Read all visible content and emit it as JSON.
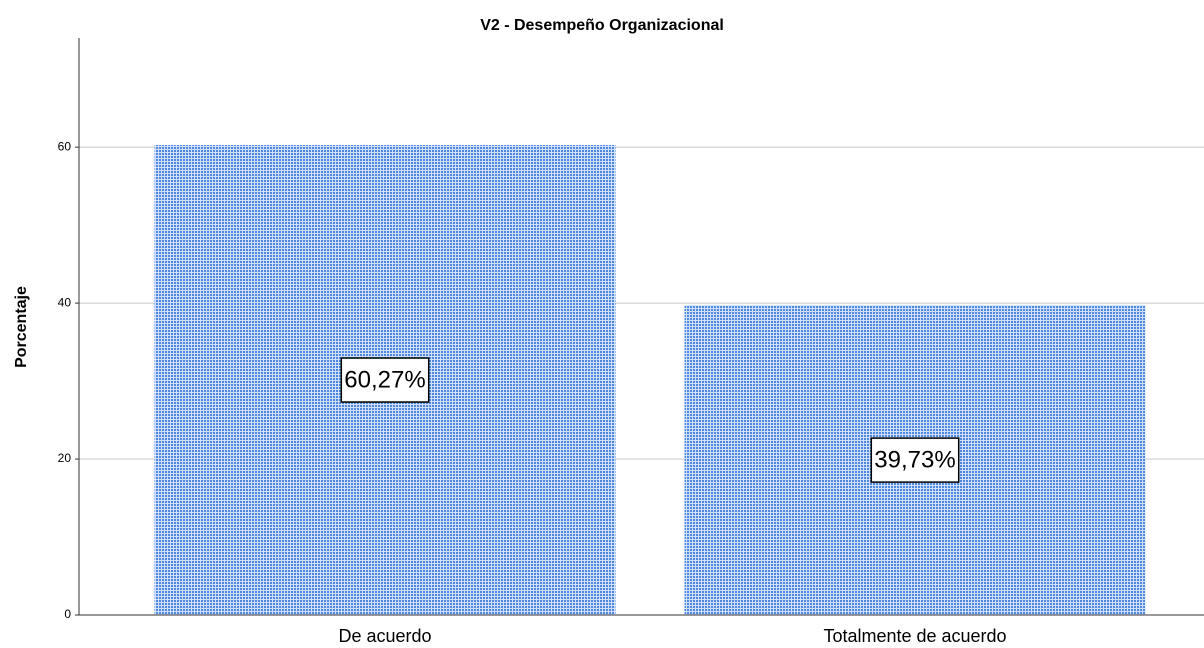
{
  "chart_data": {
    "type": "bar",
    "title": "V2 - Desempeño Organizacional",
    "y_label": "Porcentaje",
    "categories": [
      "De acuerdo",
      "Totalmente de acuerdo"
    ],
    "values": [
      60.27,
      39.73
    ],
    "value_labels": [
      "60,27%",
      "39,73%"
    ],
    "color": "#4f86e0",
    "ylim": [
      0,
      74
    ],
    "yticks": [
      0,
      20,
      40,
      60
    ],
    "grid": true
  }
}
